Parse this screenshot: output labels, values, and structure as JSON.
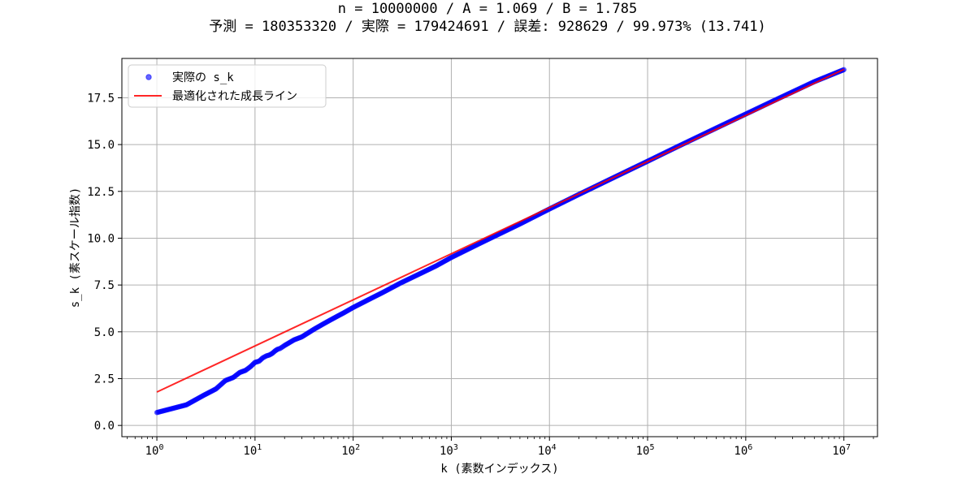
{
  "chart_data": {
    "type": "scatter",
    "title_lines": [
      "n = 10000000 / A = 1.069 / B = 1.785",
      "予測 = 180353320 / 実際 = 179424691 / 誤差: 928629 / 99.973% (13.741)"
    ],
    "xlabel": "k (素数インデックス)",
    "ylabel": "s_k (素スケール指数)",
    "x_scale": "log",
    "xlim": [
      0.44,
      22000000
    ],
    "ylim": [
      -0.6,
      19.6
    ],
    "x_ticks": [
      {
        "base": "10",
        "exp": "0"
      },
      {
        "base": "10",
        "exp": "1"
      },
      {
        "base": "10",
        "exp": "2"
      },
      {
        "base": "10",
        "exp": "3"
      },
      {
        "base": "10",
        "exp": "4"
      },
      {
        "base": "10",
        "exp": "5"
      },
      {
        "base": "10",
        "exp": "6"
      },
      {
        "base": "10",
        "exp": "7"
      }
    ],
    "y_ticks": [
      "0.0",
      "2.5",
      "5.0",
      "7.5",
      "10.0",
      "12.5",
      "15.0",
      "17.5"
    ],
    "grid": true,
    "legend_position": "top-left",
    "series": [
      {
        "name": "実際の s_k",
        "kind": "scatter",
        "color": "#0000ff",
        "points": [
          [
            1,
            0.69
          ],
          [
            2,
            1.1
          ],
          [
            3,
            1.61
          ],
          [
            4,
            1.95
          ],
          [
            5,
            2.4
          ],
          [
            6,
            2.56
          ],
          [
            7,
            2.83
          ],
          [
            8,
            2.94
          ],
          [
            9,
            3.14
          ],
          [
            10,
            3.37
          ],
          [
            11,
            3.43
          ],
          [
            12,
            3.61
          ],
          [
            13,
            3.71
          ],
          [
            14,
            3.76
          ],
          [
            15,
            3.85
          ],
          [
            16,
            3.98
          ],
          [
            17,
            4.07
          ],
          [
            18,
            4.11
          ],
          [
            19,
            4.19
          ],
          [
            20,
            4.27
          ],
          [
            25,
            4.57
          ],
          [
            30,
            4.73
          ],
          [
            40,
            5.14
          ],
          [
            50,
            5.43
          ],
          [
            60,
            5.66
          ],
          [
            70,
            5.85
          ],
          [
            80,
            6.01
          ],
          [
            100,
            6.3
          ],
          [
            150,
            6.77
          ],
          [
            200,
            7.1
          ],
          [
            300,
            7.59
          ],
          [
            500,
            8.15
          ],
          [
            700,
            8.52
          ],
          [
            1000,
            8.97
          ],
          [
            2000,
            9.75
          ],
          [
            5000,
            10.76
          ],
          [
            10000,
            11.56
          ],
          [
            20000,
            12.34
          ],
          [
            50000,
            13.35
          ],
          [
            100000,
            14.11
          ],
          [
            200000,
            14.88
          ],
          [
            500000,
            15.88
          ],
          [
            1000000,
            16.63
          ],
          [
            2000000,
            17.38
          ],
          [
            5000000,
            18.36
          ],
          [
            10000000,
            19.0
          ]
        ]
      },
      {
        "name": "最適化された成長ライン",
        "kind": "line",
        "color": "#ff0000",
        "A": 1.069,
        "B": 1.785,
        "x_range": [
          1,
          10000000
        ]
      }
    ]
  }
}
